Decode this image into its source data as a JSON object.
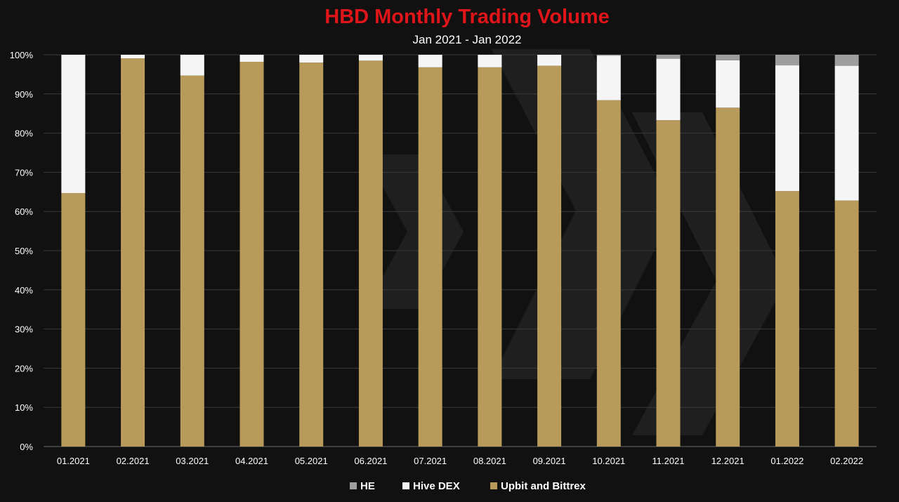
{
  "chart_data": {
    "type": "bar",
    "stacked": true,
    "title": "HBD Monthly Trading Volume",
    "subtitle": "Jan 2021 - Jan 2022",
    "xlabel": "",
    "ylabel": "",
    "ylim": [
      0,
      100
    ],
    "y_ticks": [
      "0%",
      "10%",
      "20%",
      "30%",
      "40%",
      "50%",
      "60%",
      "70%",
      "80%",
      "90%",
      "100%"
    ],
    "categories": [
      "01.2021",
      "02.2021",
      "03.2021",
      "04.2021",
      "05.2021",
      "06.2021",
      "07.2021",
      "08.2021",
      "09.2021",
      "10.2021",
      "11.2021",
      "12.2021",
      "01.2022",
      "02.2022"
    ],
    "series": [
      {
        "name": "Upbit and Bittrex",
        "color": "#B89A5A",
        "values": [
          64.7,
          99.1,
          94.7,
          98.2,
          98.0,
          98.5,
          96.8,
          96.8,
          97.2,
          88.4,
          83.3,
          86.5,
          65.2,
          62.8
        ]
      },
      {
        "name": "Hive DEX",
        "color": "#F5F5F5",
        "values": [
          35.3,
          0.9,
          5.3,
          1.8,
          2.0,
          1.5,
          3.2,
          3.2,
          2.8,
          11.4,
          15.7,
          12.1,
          32.1,
          34.4
        ]
      },
      {
        "name": "HE",
        "color": "#9E9E9E",
        "values": [
          0.0,
          0.0,
          0.0,
          0.0,
          0.0,
          0.0,
          0.0,
          0.0,
          0.0,
          0.2,
          1.0,
          1.4,
          2.7,
          2.8
        ]
      }
    ],
    "legend_order": [
      "HE",
      "Hive DEX",
      "Upbit and Bittrex"
    ],
    "legend_position": "bottom",
    "grid": true,
    "colors": {
      "title": "#E0151A",
      "background": "#111111",
      "grid": "#3A3A3A",
      "text": "#FFFFFF"
    }
  }
}
